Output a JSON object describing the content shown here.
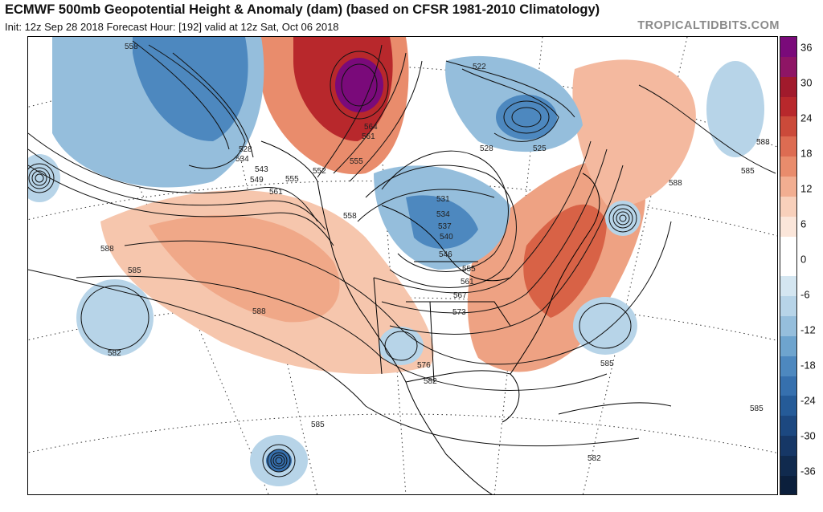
{
  "header": {
    "title": "ECMWF 500mb Geopotential Height & Anomaly (dam) (based on CFSR 1981-2010 Climatology)",
    "subtitle": "Init: 12z Sep 28 2018   Forecast Hour: [192]   valid at 12z Sat, Oct 06 2018",
    "brand": "TROPICALTIDBITS.COM"
  },
  "colorbar": {
    "ticks": [
      "36",
      "30",
      "24",
      "18",
      "12",
      "6",
      "0",
      "-6",
      "-12",
      "-18",
      "-24",
      "-30",
      "-36"
    ],
    "colors": [
      "#7a0a7a",
      "#8e1565",
      "#a11a2c",
      "#b8282c",
      "#cb4a3a",
      "#dd6c52",
      "#e98c6c",
      "#f2ae91",
      "#f8d0bb",
      "#fbe6da",
      "#ffffff",
      "#ffffff",
      "#d4e6f1",
      "#b7d4e8",
      "#95bedc",
      "#6ea4ce",
      "#4d88bf",
      "#3670ae",
      "#255b98",
      "#1c4880",
      "#163766",
      "#102a4e",
      "#0b1f3c"
    ]
  },
  "map": {
    "contour_labels": [
      "558",
      "528",
      "534",
      "543",
      "549",
      "561",
      "555",
      "552",
      "564",
      "561",
      "555",
      "522",
      "528",
      "525",
      "531",
      "534",
      "537",
      "540",
      "546",
      "558",
      "555",
      "561",
      "567",
      "573",
      "576",
      "582",
      "588",
      "585",
      "582",
      "588",
      "585",
      "582",
      "588",
      "585",
      "585",
      "585",
      "588"
    ],
    "colors": {
      "positive_anomaly": "#f2ae91",
      "negative_anomaly": "#95bedc",
      "strong_positive": "#a11a2c",
      "strong_negative": "#3670ae",
      "max_positive": "#7a0a7a",
      "contour": "#111111",
      "coastline": "#000000"
    }
  }
}
